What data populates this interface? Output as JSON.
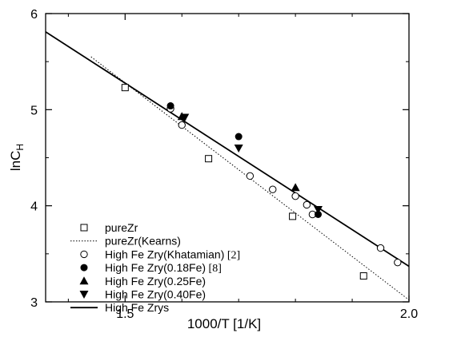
{
  "chart_data": {
    "type": "scatter",
    "xlabel": "1000/T [1/K]",
    "ylabel_main": "lnC",
    "ylabel_sub": "H",
    "xlim": [
      1.36,
      2.0
    ],
    "ylim": [
      3.0,
      6.0
    ],
    "xticks": [
      "1.5",
      "2.0"
    ],
    "xtick_values": [
      1.5,
      2.0
    ],
    "yticks": [
      "3",
      "4",
      "5",
      "6"
    ],
    "ytick_values": [
      3,
      4,
      5,
      6
    ],
    "grid": false,
    "legend_placement": "bottom-left",
    "series": [
      {
        "name": "pureZr",
        "marker": "open-square",
        "points": [
          [
            1.5,
            5.23
          ],
          [
            1.647,
            4.49
          ],
          [
            1.795,
            3.89
          ],
          [
            1.92,
            3.27
          ]
        ]
      },
      {
        "name": "pureZr(Kearns)",
        "marker": "dotted-line",
        "line": [
          [
            1.44,
            5.55
          ],
          [
            2.0,
            3.02
          ]
        ]
      },
      {
        "name": "High Fe Zry(Khatamian)",
        "ref": "[2]",
        "marker": "open-circle",
        "points": [
          [
            1.58,
            5.01
          ],
          [
            1.6,
            4.84
          ],
          [
            1.72,
            4.31
          ],
          [
            1.76,
            4.17
          ],
          [
            1.8,
            4.1
          ],
          [
            1.82,
            4.01
          ],
          [
            1.83,
            3.91
          ],
          [
            1.95,
            3.56
          ],
          [
            1.98,
            3.41
          ]
        ]
      },
      {
        "name": "High Fe Zry(0.18Fe)",
        "ref": "[8]",
        "marker": "filled-circle",
        "points": [
          [
            1.58,
            5.04
          ],
          [
            1.7,
            4.72
          ],
          [
            1.84,
            3.91
          ]
        ]
      },
      {
        "name": "High Fe Zry(0.25Fe)",
        "marker": "filled-triangle-up",
        "points": [
          [
            1.6,
            4.93
          ],
          [
            1.8,
            4.19
          ]
        ]
      },
      {
        "name": "High Fe Zry(0.40Fe)",
        "marker": "filled-triangle-down",
        "points": [
          [
            1.605,
            4.92
          ],
          [
            1.7,
            4.6
          ],
          [
            1.84,
            3.96
          ]
        ]
      },
      {
        "name": "High Fe Zrys",
        "marker": "solid-line",
        "line": [
          [
            1.36,
            5.81
          ],
          [
            2.0,
            3.37
          ]
        ]
      }
    ]
  }
}
